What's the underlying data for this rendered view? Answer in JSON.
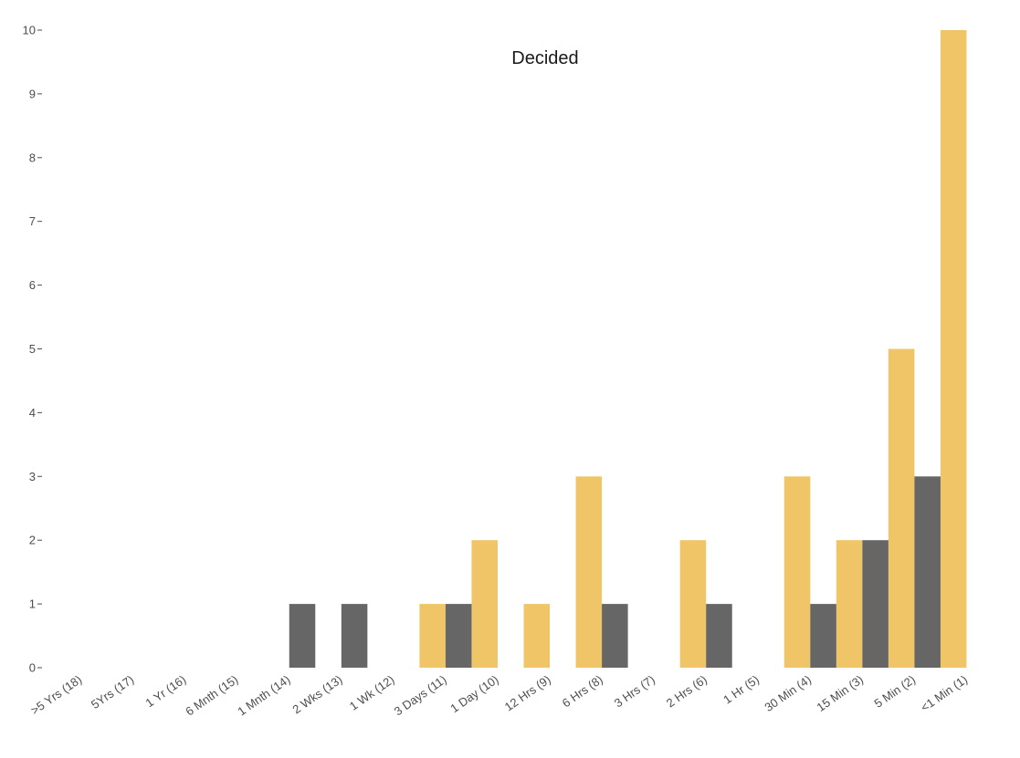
{
  "chart_data": {
    "type": "bar",
    "title": "Decided",
    "xlabel": "",
    "ylabel": "",
    "ylim": [
      0,
      10
    ],
    "yticks": [
      "0",
      "1",
      "2",
      "3",
      "4",
      "5",
      "6",
      "7",
      "8",
      "9",
      "10"
    ],
    "grid": false,
    "legend": "none",
    "categories": [
      ">5 Yrs (18)",
      "5Yrs (17)",
      "1 Yr (16)",
      "6 Mnth (15)",
      "1 Mnth (14)",
      "2 Wks (13)",
      "1 Wk (12)",
      "3 Days (11)",
      "1 Day (10)",
      "12 Hrs (9)",
      "6 Hrs (8)",
      "3 Hrs (7)",
      "2 Hrs (6)",
      "1 Hr (5)",
      "30 Min (4)",
      "15 Min (3)",
      "5 Min (2)",
      "<1 Min (1)"
    ],
    "series": [
      {
        "color": "#f0c568",
        "values": [
          0,
          0,
          0,
          0,
          0,
          0,
          0,
          1,
          2,
          1,
          3,
          0,
          2,
          0,
          3,
          2,
          5,
          10
        ]
      },
      {
        "color": "#666666",
        "values": [
          0,
          0,
          0,
          0,
          1,
          1,
          0,
          1,
          0,
          0,
          1,
          0,
          1,
          0,
          1,
          2,
          3,
          0
        ]
      }
    ]
  }
}
